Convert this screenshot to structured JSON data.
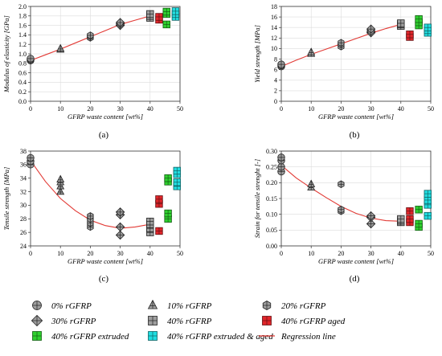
{
  "chart_data": [
    {
      "panel_label": "(a)",
      "type": "scatter",
      "title": "",
      "xlabel": "GFRP waste content [wt%]",
      "ylabel": "Modulus of elasticity [GPa]",
      "xlim": [
        0,
        50
      ],
      "ylim": [
        0.0,
        2.0
      ],
      "xticks": [
        0,
        10,
        20,
        30,
        40,
        50
      ],
      "yticks": [
        0.0,
        0.2,
        0.4,
        0.6,
        0.8,
        1.0,
        1.2,
        1.4,
        1.6,
        1.8,
        2.0
      ],
      "ytick_labels": [
        "0.0",
        "0.2",
        "0.4",
        "0.6",
        "0.8",
        "1.0",
        "1.2",
        "1.4",
        "1.6",
        "1.8",
        "2.0"
      ],
      "grid": true,
      "series": [
        {
          "key": "r0",
          "x": [
            0,
            0,
            0
          ],
          "y": [
            0.86,
            0.88,
            0.9
          ]
        },
        {
          "key": "r10",
          "x": [
            10,
            10
          ],
          "y": [
            1.09,
            1.11
          ]
        },
        {
          "key": "r20",
          "x": [
            20,
            20,
            20
          ],
          "y": [
            1.34,
            1.37,
            1.39
          ]
        },
        {
          "key": "r30",
          "x": [
            30,
            30,
            30
          ],
          "y": [
            1.6,
            1.63,
            1.66
          ]
        },
        {
          "key": "r40",
          "x": [
            40,
            40,
            40
          ],
          "y": [
            1.76,
            1.8,
            1.84
          ]
        },
        {
          "key": "r40aged",
          "x": [
            43,
            43
          ],
          "y": [
            1.72,
            1.78
          ]
        },
        {
          "key": "r40ext",
          "x": [
            45.5,
            45.5,
            45.5
          ],
          "y": [
            1.62,
            1.84,
            1.89
          ]
        },
        {
          "key": "r40extaged",
          "x": [
            48.5,
            48.5,
            48.5
          ],
          "y": [
            1.78,
            1.84,
            1.9
          ]
        }
      ],
      "regression": {
        "x": [
          0,
          5,
          10,
          15,
          20,
          25,
          30,
          35,
          40
        ],
        "y": [
          0.86,
          0.98,
          1.1,
          1.23,
          1.36,
          1.49,
          1.62,
          1.71,
          1.8
        ]
      }
    },
    {
      "panel_label": "(b)",
      "type": "scatter",
      "title": "",
      "xlabel": "GFRP waste content [wt%]",
      "ylabel": "Yield strength [MPa]",
      "xlim": [
        0,
        50
      ],
      "ylim": [
        0,
        18
      ],
      "xticks": [
        0,
        10,
        20,
        30,
        40,
        50
      ],
      "yticks": [
        0,
        2,
        4,
        6,
        8,
        10,
        12,
        14,
        16,
        18
      ],
      "ytick_labels": [
        "0",
        "2",
        "4",
        "6",
        "8",
        "10",
        "12",
        "14",
        "16",
        "18"
      ],
      "grid": true,
      "series": [
        {
          "key": "r0",
          "x": [
            0,
            0,
            0
          ],
          "y": [
            6.6,
            6.8,
            7.0
          ]
        },
        {
          "key": "r10",
          "x": [
            10,
            10
          ],
          "y": [
            9.0,
            9.3
          ]
        },
        {
          "key": "r20",
          "x": [
            20,
            20,
            20
          ],
          "y": [
            10.4,
            10.8,
            11.1
          ]
        },
        {
          "key": "r30",
          "x": [
            30,
            30,
            30
          ],
          "y": [
            13.0,
            13.3,
            13.7
          ]
        },
        {
          "key": "r40",
          "x": [
            40,
            40,
            40
          ],
          "y": [
            14.3,
            14.6,
            14.8
          ]
        },
        {
          "key": "r40aged",
          "x": [
            43,
            43
          ],
          "y": [
            12.2,
            12.7
          ]
        },
        {
          "key": "r40ext",
          "x": [
            46,
            46,
            46
          ],
          "y": [
            14.4,
            15.0,
            15.6
          ]
        },
        {
          "key": "r40extaged",
          "x": [
            49,
            49,
            49
          ],
          "y": [
            13.0,
            13.5,
            14.0
          ]
        }
      ],
      "regression": {
        "x": [
          0,
          5,
          10,
          15,
          20,
          25,
          30,
          35,
          40
        ],
        "y": [
          6.6,
          7.8,
          8.9,
          9.9,
          10.9,
          11.9,
          12.9,
          13.8,
          14.6
        ]
      }
    },
    {
      "panel_label": "(c)",
      "type": "scatter",
      "title": "",
      "xlabel": "GFRP waste content [wt%]",
      "ylabel": "Tensile strength [MPa]",
      "xlim": [
        0,
        50
      ],
      "ylim": [
        24,
        38
      ],
      "xticks": [
        0,
        10,
        20,
        30,
        40,
        50
      ],
      "yticks": [
        24,
        26,
        28,
        30,
        32,
        34,
        36,
        38
      ],
      "ytick_labels": [
        "24",
        "26",
        "28",
        "30",
        "32",
        "34",
        "36",
        "38"
      ],
      "grid": false,
      "series": [
        {
          "key": "r0",
          "x": [
            0,
            0,
            0
          ],
          "y": [
            36.0,
            36.5,
            37.0
          ]
        },
        {
          "key": "r10",
          "x": [
            10,
            10,
            10,
            10
          ],
          "y": [
            32.0,
            32.8,
            33.4,
            33.8
          ]
        },
        {
          "key": "r20",
          "x": [
            20,
            20,
            20,
            20
          ],
          "y": [
            26.8,
            27.4,
            28.0,
            28.4
          ]
        },
        {
          "key": "r30",
          "x": [
            30,
            30,
            30,
            30
          ],
          "y": [
            25.6,
            26.8,
            28.6,
            29.0
          ]
        },
        {
          "key": "r40",
          "x": [
            40,
            40,
            40,
            40
          ],
          "y": [
            26.0,
            26.6,
            27.2,
            27.6
          ]
        },
        {
          "key": "r40aged",
          "x": [
            43,
            43,
            43
          ],
          "y": [
            26.2,
            30.2,
            30.9
          ]
        },
        {
          "key": "r40ext",
          "x": [
            46,
            46,
            46,
            46
          ],
          "y": [
            28.0,
            28.8,
            33.5,
            34.0
          ]
        },
        {
          "key": "r40extaged",
          "x": [
            49,
            49,
            49,
            49
          ],
          "y": [
            32.8,
            33.4,
            34.6,
            35.1
          ]
        }
      ],
      "regression": {
        "x": [
          0,
          5,
          10,
          15,
          20,
          25,
          30,
          35,
          40
        ],
        "y": [
          36.6,
          33.5,
          31.0,
          29.2,
          27.8,
          27.0,
          26.6,
          26.8,
          27.2
        ]
      }
    },
    {
      "panel_label": "(d)",
      "type": "scatter",
      "title": "",
      "xlabel": "GFRP waste content [wt%]",
      "ylabel": "Strain for tensile strenght [-]",
      "xlim": [
        0,
        50
      ],
      "ylim": [
        0.0,
        0.3
      ],
      "xticks": [
        0,
        10,
        20,
        30,
        40,
        50
      ],
      "yticks": [
        0.0,
        0.05,
        0.1,
        0.15,
        0.2,
        0.25,
        0.3
      ],
      "ytick_labels": [
        "0.00",
        "0.05",
        "0.10",
        "0.15",
        "0.20",
        "0.25",
        "0.30"
      ],
      "grid": true,
      "series": [
        {
          "key": "r0",
          "x": [
            0,
            0,
            0,
            0
          ],
          "y": [
            0.235,
            0.25,
            0.27,
            0.28
          ]
        },
        {
          "key": "r10",
          "x": [
            10,
            10
          ],
          "y": [
            0.185,
            0.195
          ]
        },
        {
          "key": "r20",
          "x": [
            20,
            20,
            20
          ],
          "y": [
            0.11,
            0.115,
            0.195
          ]
        },
        {
          "key": "r30",
          "x": [
            30,
            30,
            30
          ],
          "y": [
            0.07,
            0.09,
            0.095
          ]
        },
        {
          "key": "r40",
          "x": [
            40,
            40,
            40
          ],
          "y": [
            0.075,
            0.08,
            0.085
          ]
        },
        {
          "key": "r40aged",
          "x": [
            43,
            43,
            43
          ],
          "y": [
            0.075,
            0.085,
            0.11
          ]
        },
        {
          "key": "r40ext",
          "x": [
            46,
            46,
            46
          ],
          "y": [
            0.06,
            0.07,
            0.115
          ]
        },
        {
          "key": "r40extaged",
          "x": [
            49,
            49,
            49,
            49
          ],
          "y": [
            0.095,
            0.13,
            0.145,
            0.165
          ]
        }
      ],
      "regression": {
        "x": [
          0,
          5,
          10,
          15,
          20,
          25,
          30,
          35,
          40
        ],
        "y": [
          0.255,
          0.215,
          0.183,
          0.153,
          0.125,
          0.103,
          0.088,
          0.08,
          0.078
        ]
      }
    }
  ],
  "legend": {
    "items": [
      {
        "key": "r0",
        "label": "0% rGFRP",
        "marker": "circle",
        "color": "#9e9e9e"
      },
      {
        "key": "r10",
        "label": "10% rGFRP",
        "marker": "triangle",
        "color": "#9e9e9e"
      },
      {
        "key": "r20",
        "label": "20% rGFRP",
        "marker": "hexagon",
        "color": "#9e9e9e"
      },
      {
        "key": "r30",
        "label": "30% rGFRP",
        "marker": "diamond",
        "color": "#9e9e9e"
      },
      {
        "key": "r40",
        "label": "40% rGFRP",
        "marker": "square",
        "color": "#9e9e9e"
      },
      {
        "key": "r40aged",
        "label": "40% rGFRP aged",
        "marker": "square",
        "color": "#e0252a"
      },
      {
        "key": "r40ext",
        "label": "40% rGFRP extruded",
        "marker": "square",
        "color": "#2fd12f"
      },
      {
        "key": "r40extaged",
        "label": "40% rGFRP extruded & aged",
        "marker": "square",
        "color": "#21dde0"
      },
      {
        "key": "reg",
        "label": "Regression line",
        "marker": "line",
        "color": "#e23a35"
      }
    ]
  },
  "colors": {
    "regression": "#e23a35",
    "grid": "#dcdcdc",
    "axis": "#333333"
  }
}
